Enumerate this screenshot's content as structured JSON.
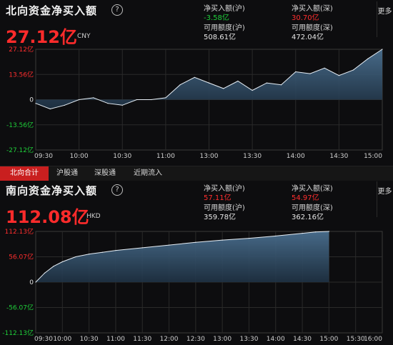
{
  "north": {
    "title": "北向资金净买入额",
    "help": "?",
    "value": "27.12亿",
    "unit": "CNY",
    "stats": {
      "sh_net_label": "净买入额(沪)",
      "sh_net_value": "-3.58亿",
      "sz_net_label": "净买入额(深)",
      "sz_net_value": "30.70亿",
      "sh_quota_label": "可用额度(沪)",
      "sh_quota_value": "508.61亿",
      "sz_quota_label": "可用额度(深)",
      "sz_quota_value": "472.04亿"
    },
    "more": "更多"
  },
  "tabs": [
    "北向合计",
    "沪股通",
    "深股通",
    "近期流入"
  ],
  "south": {
    "title": "南向资金净买入额",
    "help": "?",
    "value": "112.08亿",
    "unit": "HKD",
    "stats": {
      "sh_net_label": "净买入额(沪)",
      "sh_net_value": "57.11亿",
      "sz_net_label": "净买入额(深)",
      "sz_net_value": "54.97亿",
      "sh_quota_label": "可用额度(沪)",
      "sh_quota_value": "359.78亿",
      "sz_quota_label": "可用额度(深)",
      "sz_quota_value": "362.16亿"
    },
    "more": "更多"
  },
  "colors": {
    "up": "#ff2e2e",
    "down": "#1fcf3a",
    "accent": "#c91f1f"
  },
  "chart_data": [
    {
      "type": "area",
      "title": "北向资金净买入额",
      "x_ticks": [
        "09:30",
        "10:00",
        "10:30",
        "11:00",
        "13:00",
        "13:30",
        "14:00",
        "14:30",
        "15:00"
      ],
      "y_ticks": [
        "27.12亿",
        "13.56亿",
        "0",
        "-13.56亿",
        "-27.12亿"
      ],
      "ylim": [
        -27.12,
        27.12
      ],
      "series": [
        {
          "x": [
            "09:30",
            "09:40",
            "09:50",
            "10:00",
            "10:10",
            "10:20",
            "10:30",
            "10:40",
            "10:50",
            "11:00",
            "11:10",
            "11:20",
            "11:30",
            "13:10",
            "13:20",
            "13:30",
            "13:40",
            "13:50",
            "14:00",
            "14:10",
            "14:20",
            "14:30",
            "14:40",
            "14:50",
            "15:00"
          ],
          "values": [
            -2,
            -5,
            -3,
            0,
            1,
            -2,
            -3,
            0,
            0,
            1,
            8,
            12,
            9,
            6,
            10,
            5,
            9,
            8,
            15,
            14,
            17,
            13,
            16,
            22,
            27.12
          ]
        }
      ]
    },
    {
      "type": "area",
      "title": "南向资金净买入额",
      "x_ticks": [
        "09:30",
        "10:00",
        "10:30",
        "11:00",
        "11:30",
        "12:00",
        "12:30",
        "13:00",
        "13:30",
        "14:00",
        "14:30",
        "15:00",
        "15:30",
        "16:00"
      ],
      "y_ticks": [
        "112.13亿",
        "56.07亿",
        "0",
        "-56.07亿",
        "-112.13亿"
      ],
      "ylim": [
        -112.13,
        112.13
      ],
      "series": [
        {
          "x": [
            "09:30",
            "09:40",
            "09:50",
            "10:00",
            "10:15",
            "10:30",
            "10:45",
            "11:00",
            "11:30",
            "12:00",
            "12:30",
            "13:00",
            "13:30",
            "14:00",
            "14:30",
            "14:45",
            "15:00"
          ],
          "values": [
            0,
            20,
            35,
            45,
            56,
            62,
            66,
            70,
            76,
            82,
            88,
            93,
            97,
            102,
            108,
            111,
            112.08
          ]
        }
      ]
    }
  ]
}
